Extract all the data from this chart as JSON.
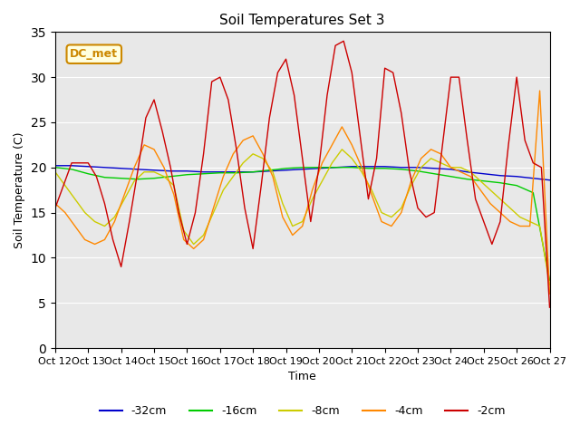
{
  "title": "Soil Temperatures Set 3",
  "xlabel": "Time",
  "ylabel": "Soil Temperature (C)",
  "xlim": [
    0,
    15
  ],
  "ylim": [
    0,
    35
  ],
  "yticks": [
    0,
    5,
    10,
    15,
    20,
    25,
    30,
    35
  ],
  "xtick_labels": [
    "Oct 12",
    "Oct 13",
    "Oct 14",
    "Oct 15",
    "Oct 16",
    "Oct 17",
    "Oct 18",
    "Oct 19",
    "Oct 20",
    "Oct 21",
    "Oct 22",
    "Oct 23",
    "Oct 24",
    "Oct 25",
    "Oct 26",
    "Oct 27"
  ],
  "legend_labels": [
    "-32cm",
    "-16cm",
    "-8cm",
    "-4cm",
    "-2cm"
  ],
  "legend_colors": [
    "#0000cc",
    "#00cc00",
    "#cccc00",
    "#ff8800",
    "#cc0000"
  ],
  "legend_linestyles": [
    "-",
    "-",
    "-",
    "-",
    "-"
  ],
  "annotation_text": "DC_met",
  "annotation_color": "#cc8800",
  "bg_color": "#e8e8e8",
  "series": {
    "d32": {
      "color": "#0000cc",
      "x": [
        0,
        0.5,
        1,
        1.5,
        2,
        2.5,
        3,
        3.5,
        4,
        4.5,
        5,
        5.5,
        6,
        6.5,
        7,
        7.5,
        8,
        8.5,
        9,
        9.5,
        10,
        10.5,
        11,
        11.5,
        12,
        12.5,
        13,
        13.5,
        14,
        14.5,
        15
      ],
      "y": [
        20.2,
        20.2,
        20.1,
        20.0,
        19.9,
        19.8,
        19.7,
        19.6,
        19.6,
        19.5,
        19.5,
        19.5,
        19.5,
        19.6,
        19.7,
        19.8,
        19.9,
        20.0,
        20.1,
        20.1,
        20.1,
        20.0,
        20.0,
        19.9,
        19.8,
        19.5,
        19.3,
        19.1,
        19.0,
        18.8,
        18.6
      ]
    },
    "d16": {
      "color": "#00cc00",
      "x": [
        0,
        0.5,
        1,
        1.5,
        2,
        2.5,
        3,
        3.5,
        4,
        4.5,
        5,
        5.5,
        6,
        6.5,
        7,
        7.5,
        8,
        8.5,
        9,
        9.5,
        10,
        10.5,
        11,
        11.5,
        12,
        12.5,
        13,
        13.5,
        14,
        14.5,
        15
      ],
      "y": [
        20.0,
        19.8,
        19.3,
        18.9,
        18.8,
        18.7,
        18.8,
        19.0,
        19.2,
        19.3,
        19.4,
        19.4,
        19.5,
        19.7,
        19.9,
        20.0,
        20.0,
        20.0,
        20.0,
        19.9,
        19.9,
        19.8,
        19.6,
        19.3,
        19.0,
        18.7,
        18.5,
        18.3,
        18.0,
        17.2,
        7.5
      ]
    },
    "d8": {
      "color": "#cccc00",
      "x": [
        0,
        0.3,
        0.6,
        0.9,
        1.2,
        1.5,
        1.8,
        2.1,
        2.4,
        2.7,
        3.0,
        3.3,
        3.6,
        3.9,
        4.2,
        4.5,
        4.8,
        5.1,
        5.4,
        5.7,
        6.0,
        6.3,
        6.6,
        6.9,
        7.2,
        7.5,
        7.8,
        8.1,
        8.4,
        8.7,
        9.0,
        9.3,
        9.6,
        9.9,
        10.2,
        10.5,
        10.8,
        11.1,
        11.4,
        11.7,
        12.0,
        12.3,
        12.6,
        12.9,
        13.2,
        13.5,
        13.8,
        14.1,
        14.4,
        14.7,
        15.0
      ],
      "y": [
        19.5,
        18.0,
        16.5,
        15.0,
        14.0,
        13.5,
        14.5,
        16.5,
        18.5,
        19.5,
        19.5,
        19.0,
        18.0,
        13.0,
        11.5,
        12.5,
        15.0,
        17.5,
        19.0,
        20.5,
        21.5,
        21.0,
        19.5,
        16.0,
        13.5,
        14.0,
        16.5,
        18.5,
        20.5,
        22.0,
        21.0,
        19.5,
        17.5,
        15.0,
        14.5,
        15.5,
        18.0,
        20.0,
        21.0,
        20.5,
        20.0,
        20.0,
        19.5,
        18.5,
        17.5,
        16.5,
        15.5,
        14.5,
        14.0,
        13.5,
        7.0
      ]
    },
    "d4": {
      "color": "#ff8800",
      "x": [
        0,
        0.3,
        0.6,
        0.9,
        1.2,
        1.5,
        1.8,
        2.1,
        2.4,
        2.7,
        3.0,
        3.3,
        3.6,
        3.9,
        4.2,
        4.5,
        4.8,
        5.1,
        5.4,
        5.7,
        6.0,
        6.3,
        6.6,
        6.9,
        7.2,
        7.5,
        7.8,
        8.1,
        8.4,
        8.7,
        9.0,
        9.3,
        9.6,
        9.9,
        10.2,
        10.5,
        10.8,
        11.1,
        11.4,
        11.7,
        12.0,
        12.3,
        12.6,
        12.9,
        13.2,
        13.5,
        13.8,
        14.1,
        14.4,
        14.7,
        15.0
      ],
      "y": [
        16.0,
        15.0,
        13.5,
        12.0,
        11.5,
        12.0,
        14.0,
        17.0,
        20.0,
        22.5,
        22.0,
        20.0,
        17.0,
        12.0,
        11.0,
        12.0,
        15.5,
        19.0,
        21.5,
        23.0,
        23.5,
        21.5,
        19.0,
        14.5,
        12.5,
        13.5,
        17.5,
        20.5,
        22.5,
        24.5,
        22.5,
        20.0,
        17.0,
        14.0,
        13.5,
        15.0,
        18.5,
        21.0,
        22.0,
        21.5,
        20.0,
        19.5,
        19.0,
        17.5,
        16.0,
        15.0,
        14.0,
        13.5,
        13.5,
        28.5,
        6.0
      ]
    },
    "d2": {
      "color": "#cc0000",
      "x": [
        0,
        0.25,
        0.5,
        0.75,
        1.0,
        1.25,
        1.5,
        1.75,
        2.0,
        2.25,
        2.5,
        2.75,
        3.0,
        3.25,
        3.5,
        3.75,
        4.0,
        4.25,
        4.5,
        4.75,
        5.0,
        5.25,
        5.5,
        5.75,
        6.0,
        6.25,
        6.5,
        6.75,
        7.0,
        7.25,
        7.5,
        7.75,
        8.0,
        8.25,
        8.5,
        8.75,
        9.0,
        9.25,
        9.5,
        9.75,
        10.0,
        10.25,
        10.5,
        10.75,
        11.0,
        11.25,
        11.5,
        11.75,
        12.0,
        12.25,
        12.5,
        12.75,
        13.0,
        13.25,
        13.5,
        13.75,
        14.0,
        14.25,
        14.5,
        14.75,
        15.0
      ],
      "y": [
        15.5,
        18.0,
        20.5,
        20.5,
        20.5,
        19.0,
        16.0,
        12.0,
        9.0,
        14.0,
        19.5,
        25.5,
        27.5,
        24.0,
        20.0,
        15.0,
        11.5,
        15.0,
        21.5,
        29.5,
        30.0,
        27.5,
        22.0,
        15.5,
        11.0,
        18.0,
        25.5,
        30.5,
        32.0,
        28.0,
        21.0,
        14.0,
        20.0,
        28.0,
        33.5,
        34.0,
        30.5,
        23.5,
        16.5,
        21.0,
        31.0,
        30.5,
        26.0,
        19.5,
        15.5,
        14.5,
        15.0,
        22.5,
        30.0,
        30.0,
        23.0,
        16.5,
        14.0,
        11.5,
        14.0,
        22.5,
        30.0,
        23.0,
        20.5,
        20.0,
        4.5
      ]
    }
  }
}
